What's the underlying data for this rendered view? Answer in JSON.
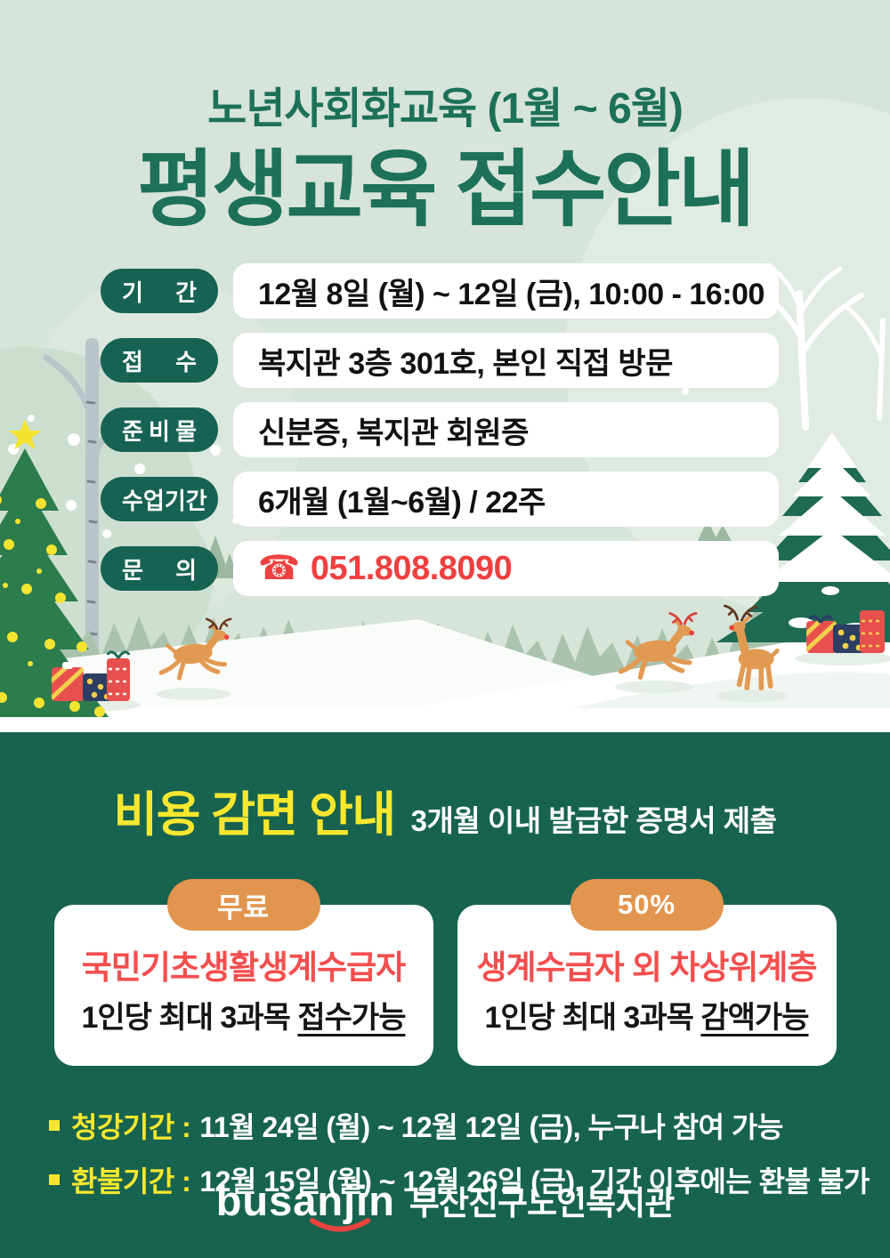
{
  "poster": {
    "header": {
      "subtitle": "노년사회화교육 (1월 ~ 6월)",
      "title": "평생교육 접수안내"
    },
    "info_rows": [
      {
        "label": "기간",
        "value": "12월 8일 (월) ~ 12일 (금), 10:00 - 16:00"
      },
      {
        "label": "접수",
        "value": "복지관 3층 301호, 본인 직접 방문"
      },
      {
        "label": "준비물",
        "value": "신분증, 복지관 회원증"
      },
      {
        "label": "수업기간",
        "value": "6개월 (1월~6월) / 22주"
      },
      {
        "label": "문의",
        "value": "051.808.8090",
        "phone_glyph": "☎"
      }
    ],
    "discount": {
      "title": "비용 감면 안내",
      "subtitle": "3개월 이내 발급한 증명서 제출",
      "cards": [
        {
          "badge": "무료",
          "highlight": "국민기초생활생계수급자",
          "line_prefix": "1인당 최대 3과목 ",
          "line_underline": "접수가능"
        },
        {
          "badge": "50%",
          "highlight": "생계수급자 외 차상위계층",
          "line_prefix": "1인당 최대 3과목 ",
          "line_underline": "감액가능"
        }
      ],
      "notes": [
        {
          "label": "청강기간 :",
          "text": "11월 24일 (월) ~ 12월 12일 (금), 누구나 참여 가능"
        },
        {
          "label": "환불기간 :",
          "text": "12월 15일 (월) ~ 12월 26일 (금), 기간 이후에는 환불 불가"
        }
      ]
    },
    "footer": {
      "logo": "busanjin",
      "org": "부산진구노인복지관"
    },
    "colors": {
      "deep_green": "#1d7158",
      "pill_green": "#176353",
      "section_green": "#17634f",
      "mint_bg": "#d6e4da",
      "yellow": "#f8e72f",
      "orange": "#e2954e",
      "card_red": "#f34e4e",
      "phone_red": "#ee4040"
    }
  }
}
